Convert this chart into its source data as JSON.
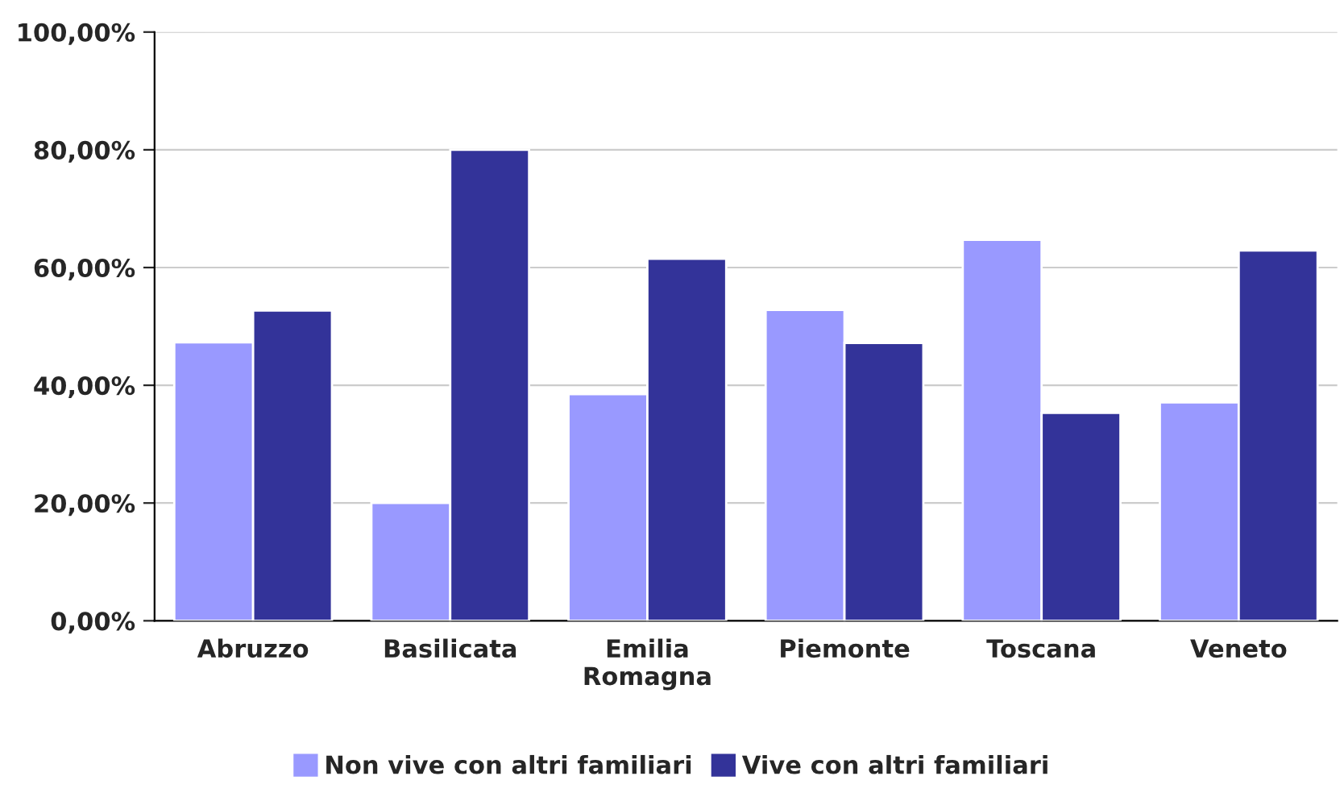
{
  "chart_data": {
    "type": "bar",
    "categories": [
      "Abruzzo",
      "Basilicata",
      "Emilia\nRomagna",
      "Piemonte",
      "Toscana",
      "Veneto"
    ],
    "series": [
      {
        "name": "Non vive con altri familiari",
        "color": "#9999ff",
        "values": [
          47.3,
          20.0,
          38.5,
          52.8,
          64.7,
          37.1
        ]
      },
      {
        "name": "Vive con altri familiari",
        "color": "#333399",
        "values": [
          52.7,
          80.0,
          61.5,
          47.2,
          35.3,
          62.9
        ]
      }
    ],
    "ylim": [
      0,
      100
    ],
    "yticks": [
      {
        "value": 0,
        "label": "0,00%"
      },
      {
        "value": 20,
        "label": "20,00%"
      },
      {
        "value": 40,
        "label": "40,00%"
      },
      {
        "value": 60,
        "label": "60,00%"
      },
      {
        "value": 80,
        "label": "80,00%"
      },
      {
        "value": 100,
        "label": "100,00%"
      }
    ],
    "grid": "y",
    "legend": "bottom"
  }
}
